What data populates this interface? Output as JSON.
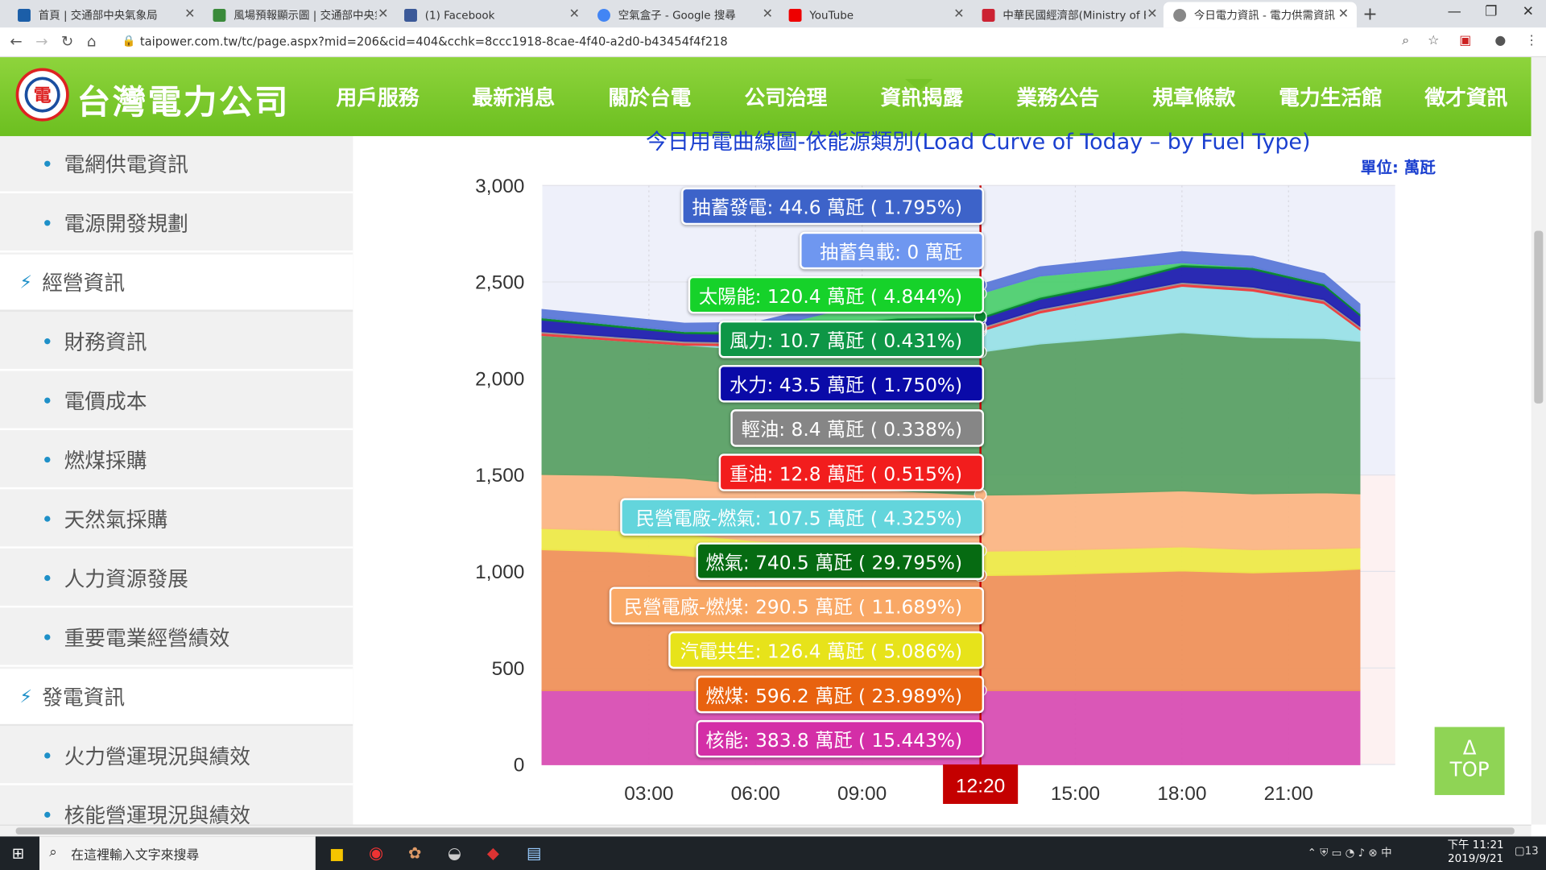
{
  "browser": {
    "tabs": [
      "首頁 | 交通部中央氣象局",
      "風場預報顯示圖 | 交通部中央氣象",
      "(1) Facebook",
      "空氣盒子 - Google 搜尋",
      "YouTube",
      "中華民國經濟部(Ministry of Econ",
      "今日電力資訊 - 電力供需資訊 - 資"
    ],
    "url": "taipower.com.tw/tc/page.aspx?mid=206&cid=404&cchk=8ccc1918-8cae-4f40-a2d0-b43454f4f218"
  },
  "site": {
    "logo_text": "台灣電力公司",
    "logo_mark": "電",
    "nav": [
      "用戶服務",
      "最新消息",
      "關於台電",
      "公司治理",
      "資訊揭露",
      "業務公告",
      "規章條款",
      "電力生活館",
      "徵才資訊"
    ]
  },
  "sidebar": [
    {
      "label": "電網供電資訊",
      "type": "sub"
    },
    {
      "label": "電源開發規劃",
      "type": "sub"
    },
    {
      "label": "經營資訊",
      "type": "section"
    },
    {
      "label": "財務資訊",
      "type": "sub"
    },
    {
      "label": "電價成本",
      "type": "sub"
    },
    {
      "label": "燃煤採購",
      "type": "sub"
    },
    {
      "label": "天然氣採購",
      "type": "sub"
    },
    {
      "label": "人力資源發展",
      "type": "sub"
    },
    {
      "label": "重要電業經營績效",
      "type": "sub"
    },
    {
      "label": "發電資訊",
      "type": "section"
    },
    {
      "label": "火力營運現況與績效",
      "type": "sub"
    },
    {
      "label": "核能營運現況與績效",
      "type": "sub"
    }
  ],
  "chart_data": {
    "type": "area",
    "title": "今日用電曲線圖-依能源類別(Load Curve of Today – by Fuel Type)",
    "unit": "單位: 萬瓩",
    "ylim": [
      0,
      3000
    ],
    "yticks": [
      "0",
      "500",
      "1,000",
      "1,500",
      "2,000",
      "2,500",
      "3,000"
    ],
    "xticks": [
      "03:00",
      "06:00",
      "09:00",
      "15:00",
      "18:00",
      "21:00"
    ],
    "cursor_label": "12:20",
    "x": [
      0,
      2,
      4,
      6,
      8,
      10,
      12.33,
      14,
      16,
      18,
      20,
      22,
      23
    ],
    "series": [
      {
        "name": "核能",
        "color": "#d94fb4",
        "values": [
          383.8,
          383.8,
          383.8,
          383.8,
          383.8,
          383.8,
          383.8,
          383.8,
          383.8,
          383.8,
          383.8,
          383.8,
          383.8
        ],
        "tooltip": "核能: 383.8 萬瓩 ( 15.443%)"
      },
      {
        "name": "燃煤",
        "color": "#f0935c",
        "values": [
          730,
          720,
          700,
          660,
          640,
          620,
          596.2,
          600,
          610,
          620,
          610,
          620,
          630
        ],
        "tooltip": "燃煤: 596.2 萬瓩 ( 23.989%)"
      },
      {
        "name": "汽電共生",
        "color": "#eeea4a",
        "values": [
          110,
          110,
          110,
          115,
          120,
          125,
          126.4,
          126,
          125,
          125,
          120,
          115,
          110
        ],
        "tooltip": "汽電共生: 126.4 萬瓩 ( 5.086%)"
      },
      {
        "name": "民營電廠-燃煤",
        "color": "#fbb785",
        "values": [
          280,
          285,
          290,
          290,
          290,
          290,
          290.5,
          290,
          290,
          290,
          290,
          290,
          280
        ],
        "tooltip": "民營電廠-燃煤: 290.5 萬瓩 ( 11.689%)"
      },
      {
        "name": "燃氣",
        "color": "#5ba266",
        "values": [
          720,
          700,
          690,
          700,
          710,
          730,
          740.5,
          780,
          800,
          820,
          810,
          800,
          790
        ],
        "tooltip": "燃氣: 740.5 萬瓩 ( 29.795%)"
      },
      {
        "name": "民營電廠-燃氣",
        "color": "#9ae2e8",
        "values": [
          0,
          0,
          0,
          20,
          60,
          90,
          107.5,
          160,
          200,
          240,
          240,
          180,
          60
        ],
        "tooltip": "民營電廠-燃氣: 107.5 萬瓩 ( 4.325%)"
      },
      {
        "name": "重油",
        "color": "#f03a3a",
        "values": [
          12,
          12,
          12,
          12,
          12,
          12,
          12.8,
          13,
          13,
          13,
          13,
          13,
          12
        ],
        "tooltip": "重油: 12.8 萬瓩 ( 0.515%)"
      },
      {
        "name": "輕油",
        "color": "#9a9a9a",
        "values": [
          8,
          8,
          8,
          8,
          8,
          8,
          8.4,
          8,
          8,
          8,
          8,
          8,
          8
        ],
        "tooltip": "輕油: 8.4 萬瓩 ( 0.338%)"
      },
      {
        "name": "水力",
        "color": "#2020b0",
        "values": [
          60,
          50,
          40,
          40,
          45,
          45,
          43.5,
          50,
          55,
          80,
          90,
          70,
          55
        ],
        "tooltip": "水力: 43.5 萬瓩 ( 1.750%)"
      },
      {
        "name": "風力",
        "color": "#0a8a30",
        "values": [
          12,
          12,
          11,
          11,
          11,
          11,
          10.7,
          11,
          11,
          11,
          12,
          12,
          12
        ],
        "tooltip": "風力: 10.7 萬瓩 ( 0.431%)"
      },
      {
        "name": "太陽能",
        "color": "#4fd070",
        "values": [
          0,
          0,
          0,
          10,
          60,
          100,
          120.4,
          110,
          70,
          10,
          0,
          0,
          0
        ],
        "tooltip": "太陽能: 120.4 萬瓩 ( 4.844%)"
      },
      {
        "name": "抽蓄負載",
        "color": "#8fb7f2",
        "values": [
          0,
          0,
          0,
          0,
          0,
          0,
          0,
          0,
          0,
          0,
          0,
          0,
          0
        ],
        "tooltip": "抽蓄負載: 0 萬瓩"
      },
      {
        "name": "抽蓄發電",
        "color": "#5c7ad9",
        "values": [
          40,
          40,
          40,
          40,
          40,
          42,
          44.6,
          45,
          50,
          55,
          55,
          50,
          45
        ],
        "tooltip": "抽蓄發電: 44.6 萬瓩 ( 1.795%)"
      }
    ]
  },
  "tooltip_colors": {
    "抽蓄發電": "#3d63c9",
    "抽蓄負載": "#6f97f0",
    "太陽能": "#16d22a",
    "風力": "#0e9646",
    "水力": "#0a0aa8",
    "輕油": "#868686",
    "重油": "#f21d1d",
    "民營電廠-燃氣": "#63d5dc",
    "燃氣": "#066b12",
    "民營電廠-燃煤": "#f9a866",
    "汽電共生": "#e7e31a",
    "燃煤": "#e8620f",
    "核能": "#d42ea7"
  },
  "top_button": {
    "arrow": "Δ",
    "label": "TOP"
  },
  "taskbar": {
    "search_placeholder": "在這裡輸入文字來搜尋",
    "time": "下午 11:21",
    "date": "2019/9/21",
    "notifications": "13"
  }
}
